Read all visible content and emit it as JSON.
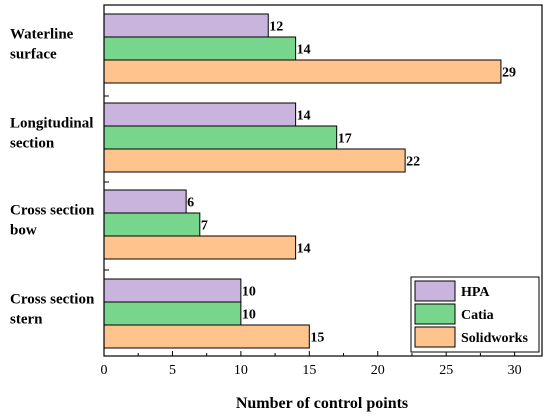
{
  "chart_data": {
    "type": "bar",
    "orientation": "horizontal",
    "title": "",
    "xlabel": "Number of control points",
    "ylabel": "",
    "xlim": [
      0,
      32
    ],
    "xticks": [
      "0",
      "5",
      "10",
      "15",
      "20",
      "25",
      "30"
    ],
    "grid": false,
    "legend_position": "bottom-right",
    "categories": [
      [
        "Waterline",
        "surface"
      ],
      [
        "Longitudinal",
        "section"
      ],
      [
        "Cross section",
        "bow"
      ],
      [
        "Cross section",
        "stern"
      ]
    ],
    "series": [
      {
        "name": "HPA",
        "color": "#c8b4dc",
        "values": [
          12,
          14,
          6,
          10
        ]
      },
      {
        "name": "Catia",
        "color": "#78d68c",
        "values": [
          14,
          17,
          7,
          10
        ]
      },
      {
        "name": "Solidworks",
        "color": "#ffc48e",
        "values": [
          29,
          22,
          14,
          15
        ]
      }
    ]
  }
}
